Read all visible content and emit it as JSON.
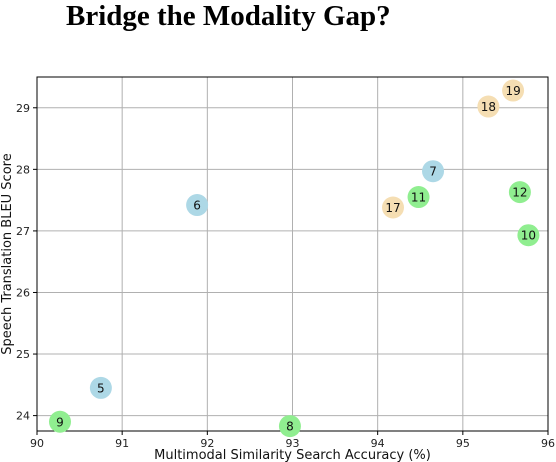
{
  "title": "Bridge the Modality Gap?",
  "chart_data": {
    "type": "scatter",
    "title": "Bridge the Modality Gap?",
    "xlabel": "Multimodal Similarity Search Accuracy (%)",
    "ylabel": "Speech Translation BLEU Score",
    "xlim": [
      90,
      96
    ],
    "ylim": [
      23.75,
      29.5
    ],
    "xticks": [
      90,
      91,
      92,
      93,
      94,
      95,
      96
    ],
    "yticks": [
      24,
      25,
      26,
      27,
      28,
      29
    ],
    "grid": true,
    "colors": {
      "blue": "#add8e6",
      "green": "#90ee90",
      "orange": "#f5deb3"
    },
    "points": [
      {
        "label": "5",
        "x": 90.75,
        "y": 24.45,
        "color": "blue"
      },
      {
        "label": "6",
        "x": 91.88,
        "y": 27.42,
        "color": "blue"
      },
      {
        "label": "7",
        "x": 94.65,
        "y": 27.97,
        "color": "blue"
      },
      {
        "label": "8",
        "x": 92.97,
        "y": 23.83,
        "color": "green"
      },
      {
        "label": "9",
        "x": 90.27,
        "y": 23.9,
        "color": "green"
      },
      {
        "label": "10",
        "x": 95.77,
        "y": 26.93,
        "color": "green"
      },
      {
        "label": "11",
        "x": 94.48,
        "y": 27.55,
        "color": "green"
      },
      {
        "label": "12",
        "x": 95.67,
        "y": 27.63,
        "color": "green"
      },
      {
        "label": "17",
        "x": 94.18,
        "y": 27.38,
        "color": "orange"
      },
      {
        "label": "18",
        "x": 95.3,
        "y": 29.02,
        "color": "orange"
      },
      {
        "label": "19",
        "x": 95.59,
        "y": 29.28,
        "color": "orange"
      }
    ]
  }
}
